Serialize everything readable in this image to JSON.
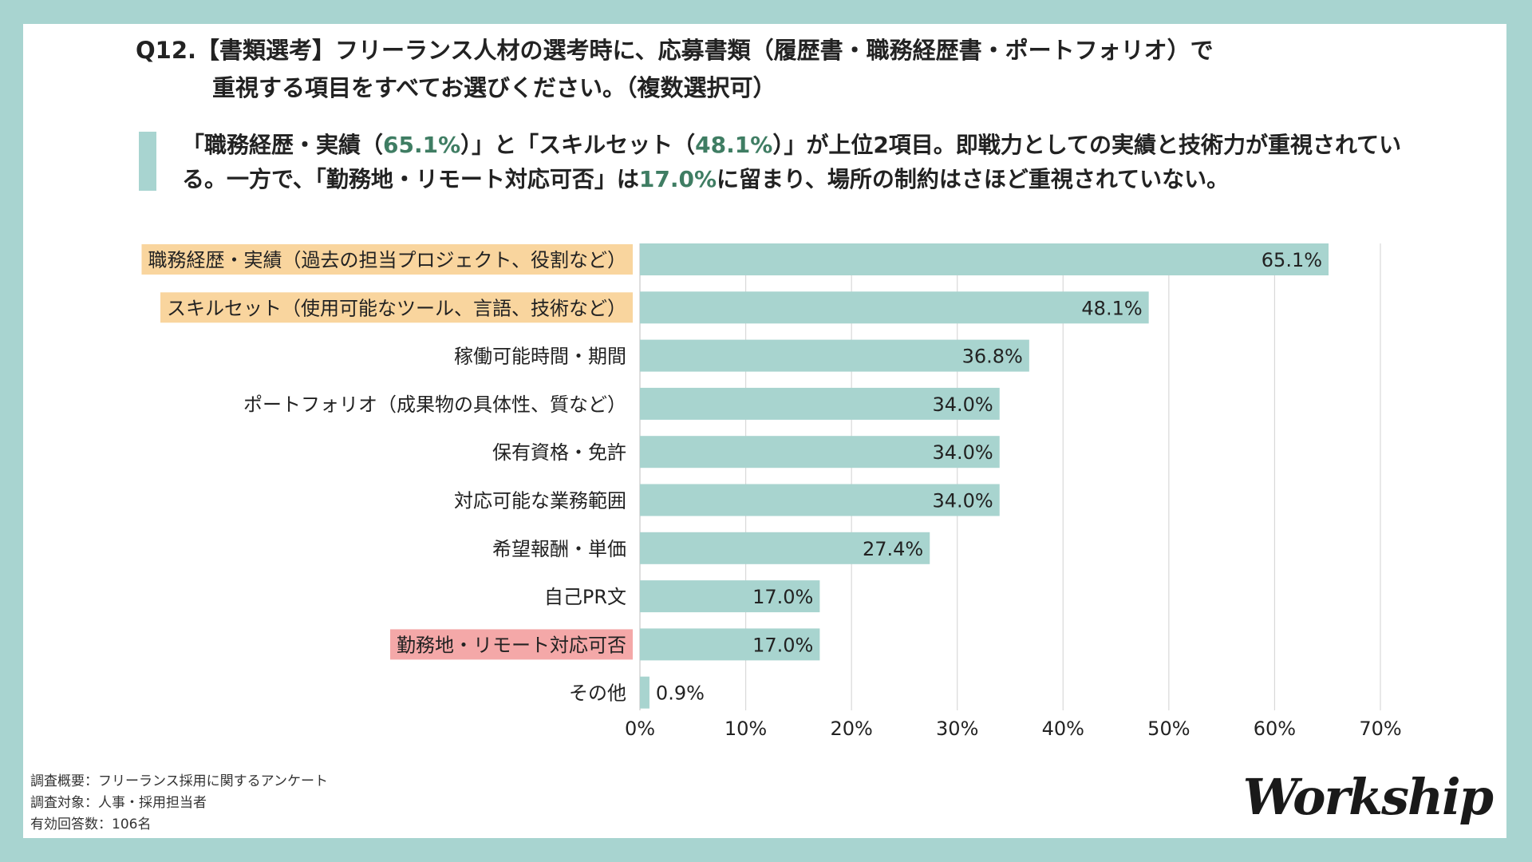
{
  "title": {
    "line1": "Q12.【書類選考】フリーランス人材の選考時に、応募書類（履歴書・職務経歴書・ポートフォリオ）で",
    "line2": "重視する項目をすべてお選びください。（複数選択可）"
  },
  "summary": {
    "p1": "「職務経歴・実績（",
    "v1": "65.1%",
    "p2": "）」と「スキルセット（",
    "v2": "48.1%",
    "p3": "）」が上位2項目。即戦力としての実績と技術力が重視されている。一方で、「勤務地・リモート対応可否」は",
    "v3": "17.0%",
    "p4": "に留まり、場所の制約はさほど重視されていない。"
  },
  "chart_data": {
    "type": "bar",
    "orientation": "horizontal",
    "categories": [
      "職務経歴・実績（過去の担当プロジェクト、役割など）",
      "スキルセット（使用可能なツール、言語、技術など）",
      "稼働可能時間・期間",
      "ポートフォリオ（成果物の具体性、質など）",
      "保有資格・免許",
      "対応可能な業務範囲",
      "希望報酬・単価",
      "自己PR文",
      "勤務地・リモート対応可否",
      "その他"
    ],
    "values": [
      65.1,
      48.1,
      36.8,
      34.0,
      34.0,
      34.0,
      27.4,
      17.0,
      17.0,
      0.9
    ],
    "data_labels": [
      "65.1%",
      "48.1%",
      "36.8%",
      "34.0%",
      "34.0%",
      "34.0%",
      "27.4%",
      "17.0%",
      "17.0%",
      "0.9%"
    ],
    "highlights": [
      "orange",
      "orange",
      null,
      null,
      null,
      null,
      null,
      null,
      "pink",
      null
    ],
    "xlim": [
      0,
      70
    ],
    "xticks": [
      "0%",
      "10%",
      "20%",
      "30%",
      "40%",
      "50%",
      "60%",
      "70%"
    ],
    "grid": true,
    "colors": {
      "bar": "#a8d4cf",
      "highlight_orange": "#f9d59e",
      "highlight_pink": "#f4a8a8",
      "accent_text": "#3f7d63",
      "grid": "#d9d9d9"
    }
  },
  "footer": {
    "line1": "調査概要：フリーランス採用に関するアンケート",
    "line2": "調査対象：人事・採用担当者",
    "line3": "有効回答数：106名"
  },
  "logo": "Workship"
}
